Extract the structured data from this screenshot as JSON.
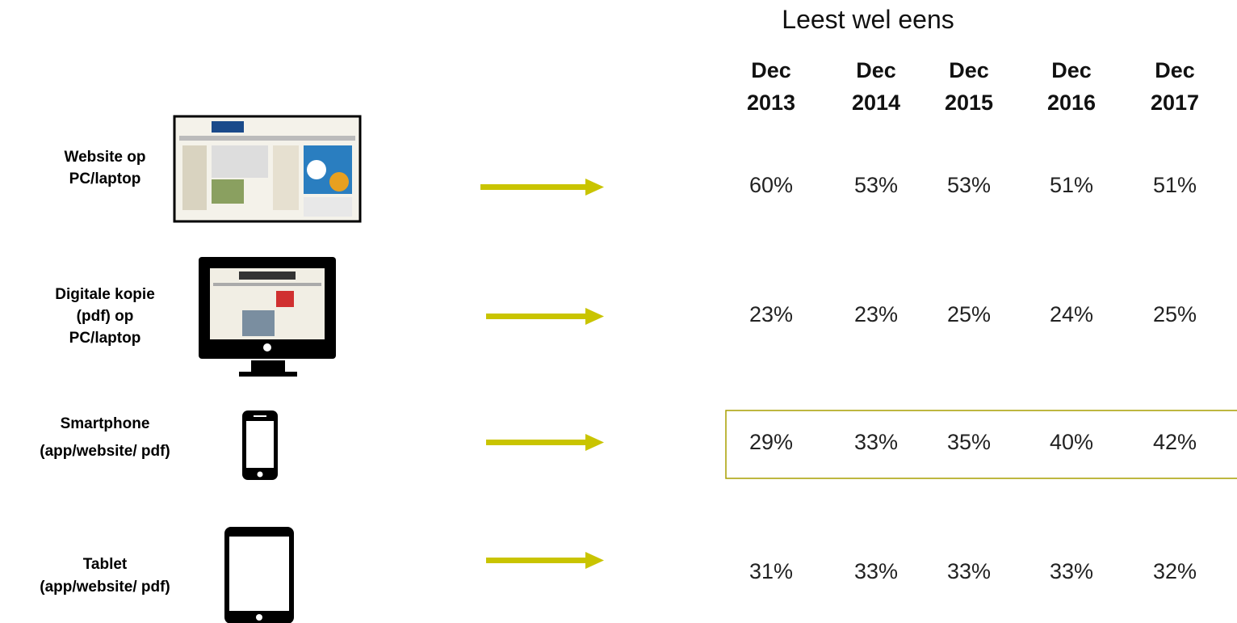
{
  "title": "Leest wel eens",
  "columns": [
    {
      "month": "Dec",
      "year": "2013"
    },
    {
      "month": "Dec",
      "year": "2014"
    },
    {
      "month": "Dec",
      "year": "2015"
    },
    {
      "month": "Dec",
      "year": "2016"
    },
    {
      "month": "Dec",
      "year": "2017"
    }
  ],
  "rows": [
    {
      "label": [
        "Website op",
        "PC/laptop"
      ],
      "values": [
        "60%",
        "53%",
        "53%",
        "51%",
        "51%"
      ]
    },
    {
      "label": [
        "Digitale kopie",
        "(pdf) op",
        "PC/laptop"
      ],
      "values": [
        "23%",
        "23%",
        "25%",
        "24%",
        "25%"
      ]
    },
    {
      "label": [
        "Smartphone",
        "(app/website/ pdf)"
      ],
      "values": [
        "29%",
        "33%",
        "35%",
        "40%",
        "42%"
      ]
    },
    {
      "label": [
        "Tablet",
        "(app/website/ pdf)"
      ],
      "values": [
        "31%",
        "33%",
        "33%",
        "33%",
        "32%"
      ]
    }
  ]
}
